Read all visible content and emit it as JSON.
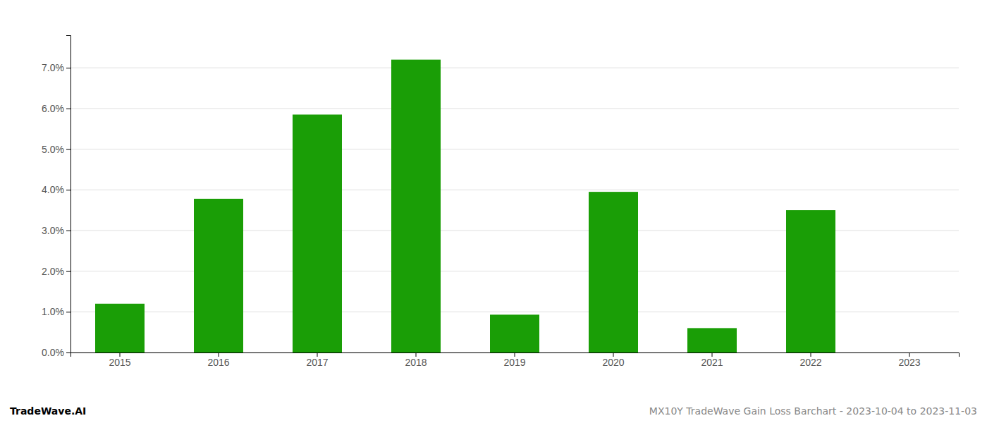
{
  "chart_data": {
    "type": "bar",
    "categories": [
      "2015",
      "2016",
      "2017",
      "2018",
      "2019",
      "2020",
      "2021",
      "2022",
      "2023"
    ],
    "values": [
      0.012,
      0.0378,
      0.0585,
      0.072,
      0.0093,
      0.0395,
      0.006,
      0.035,
      0.0
    ],
    "color": "#1a9e06",
    "ylim": [
      0.0,
      0.078
    ],
    "yticks": [
      {
        "value": 0.0,
        "label": "0.0%"
      },
      {
        "value": 0.01,
        "label": "1.0%"
      },
      {
        "value": 0.02,
        "label": "2.0%"
      },
      {
        "value": 0.03,
        "label": "3.0%"
      },
      {
        "value": 0.04,
        "label": "4.0%"
      },
      {
        "value": 0.05,
        "label": "5.0%"
      },
      {
        "value": 0.06,
        "label": "6.0%"
      },
      {
        "value": 0.07,
        "label": "7.0%"
      }
    ],
    "grid": true,
    "annotations": [
      "TradeWave.AI",
      "MX10Y TradeWave Gain Loss Barchart - 2023-10-04 to 2023-11-03"
    ]
  }
}
